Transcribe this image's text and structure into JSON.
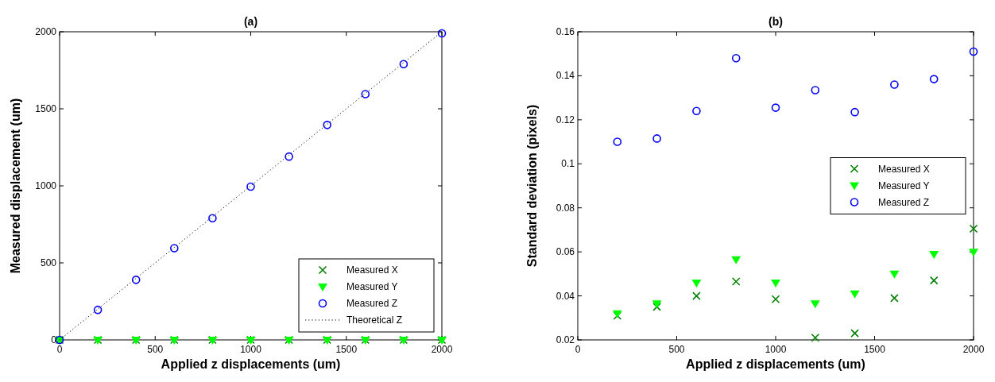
{
  "chart_data": [
    {
      "type": "scatter",
      "title": "(a)",
      "xlabel": "Applied z displacements (um)",
      "ylabel": "Measured displacement (um)",
      "x": [
        0,
        200,
        400,
        600,
        800,
        1000,
        1200,
        1400,
        1600,
        1800,
        2000
      ],
      "xlim": [
        0,
        2000
      ],
      "xticks": [
        0,
        500,
        1000,
        1500,
        2000
      ],
      "ylim": [
        0,
        2000
      ],
      "yticks": [
        0,
        500,
        1000,
        1500,
        2000
      ],
      "legend": "bottom right",
      "grid": false,
      "series": [
        {
          "name": "Measured X",
          "color": "#008000",
          "marker": "cross",
          "values": [
            0,
            0,
            0,
            0,
            0,
            0,
            0,
            0,
            0,
            0,
            0
          ]
        },
        {
          "name": "Measured Y",
          "color": "#00ff00",
          "marker": "triangle",
          "values": [
            0,
            0,
            0,
            0,
            0,
            0,
            0,
            0,
            0,
            0,
            0
          ]
        },
        {
          "name": "Measured Z",
          "color": "#0000ff",
          "marker": "circle",
          "values": [
            0,
            195,
            390,
            595,
            790,
            995,
            1190,
            1395,
            1595,
            1790,
            1990
          ]
        },
        {
          "name": "Theoretical Z",
          "type": "line",
          "color": "#000000",
          "marker": "none",
          "line_style": "dotted",
          "x": [
            0,
            2000
          ],
          "values": [
            0,
            2000
          ]
        }
      ]
    },
    {
      "type": "scatter",
      "title": "(b)",
      "xlabel": "Applied z displacements (um)",
      "ylabel": "Standard deviation (pixels)",
      "x": [
        200,
        400,
        600,
        800,
        1000,
        1200,
        1400,
        1600,
        1800,
        2000
      ],
      "xlim": [
        0,
        2000
      ],
      "xticks": [
        0,
        500,
        1000,
        1500,
        2000
      ],
      "ylim": [
        0.02,
        0.16
      ],
      "yticks": [
        0.02,
        0.04,
        0.06,
        0.08,
        {
          "value": 0.1,
          "label": "0.1"
        },
        0.12,
        0.14,
        0.16
      ],
      "legend": "right",
      "grid": false,
      "series": [
        {
          "name": "Measured X",
          "color": "#008000",
          "marker": "cross",
          "values": [
            0.031,
            0.035,
            0.04,
            0.0465,
            0.0385,
            0.021,
            0.023,
            0.039,
            0.047,
            0.0705
          ]
        },
        {
          "name": "Measured Y",
          "color": "#00ff00",
          "marker": "triangle",
          "values": [
            0.032,
            0.0365,
            0.046,
            0.0565,
            0.046,
            0.0365,
            0.041,
            0.05,
            0.059,
            0.06
          ]
        },
        {
          "name": "Measured Z",
          "color": "#0000ff",
          "marker": "circle",
          "values": [
            0.11,
            0.1115,
            0.124,
            0.148,
            0.1255,
            0.1335,
            0.1235,
            0.136,
            0.1385,
            0.151
          ]
        }
      ]
    }
  ]
}
